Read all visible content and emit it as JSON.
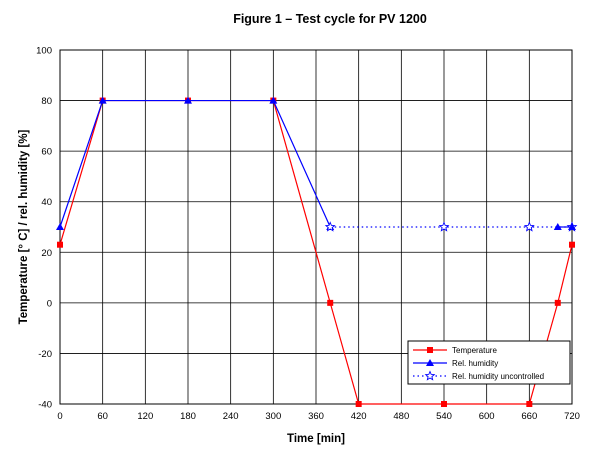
{
  "chart_data": {
    "type": "line",
    "title": "Figure 1 – Test cycle for PV 1200",
    "xlabel": "Time [min]",
    "ylabel": "Temperature [° C] / rel. humidity [%]",
    "xlim": [
      0,
      720
    ],
    "ylim": [
      -40,
      100
    ],
    "x_ticks": [
      0,
      60,
      120,
      180,
      240,
      300,
      360,
      420,
      480,
      540,
      600,
      660,
      720
    ],
    "y_ticks": [
      -40,
      -20,
      0,
      20,
      40,
      60,
      80,
      100
    ],
    "grid": true,
    "legend_position": "bottom-right",
    "series": [
      {
        "name": "Temperature",
        "color": "#ff0000",
        "marker": "square",
        "line_style": "solid",
        "x": [
          0,
          60,
          180,
          300,
          380,
          420,
          540,
          660,
          700,
          720
        ],
        "y": [
          23,
          80,
          80,
          80,
          0,
          -40,
          -40,
          -40,
          0,
          23
        ]
      },
      {
        "name": "Rel. humidity",
        "color": "#0000ff",
        "marker": "triangle",
        "line_style": "solid",
        "x": [
          0,
          60,
          180,
          300,
          380
        ],
        "y": [
          30,
          80,
          80,
          80,
          30
        ]
      },
      {
        "name": "Rel. humidity uncontrolled",
        "color": "#0000ff",
        "marker": "star",
        "line_style": "dotted",
        "x": [
          380,
          540,
          660,
          720
        ],
        "y": [
          30,
          30,
          30,
          30
        ]
      },
      {
        "name": "",
        "color": "#0000ff",
        "marker": "triangle",
        "line_style": "solid",
        "x": [
          700,
          720
        ],
        "y": [
          30,
          30
        ]
      }
    ]
  }
}
